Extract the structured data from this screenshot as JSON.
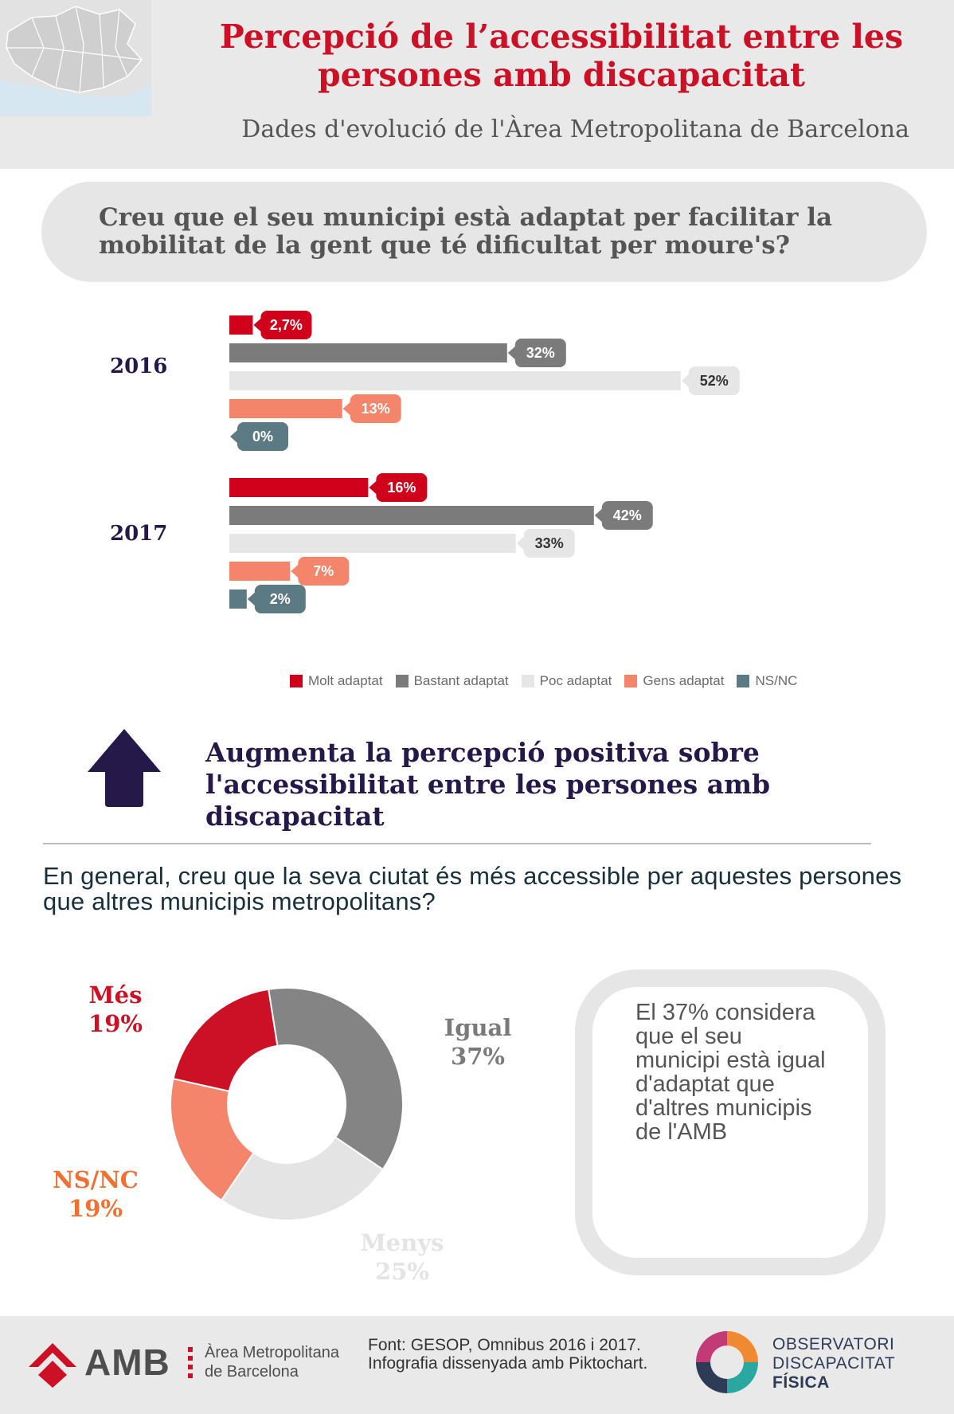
{
  "header": {
    "title": "Percepció de l’accessibilitat entre les persones amb discapacitat",
    "subtitle": "Dades d'evolució de l'Àrea Metropolitana de Barcelona"
  },
  "question1": "Creu que el seu municipi està adaptat per facilitar la mobilitat de la gent que té dificultat per moure's?",
  "headline": "Augmenta la percepció positiva sobre l'accessibilitat entre les persones amb discapacitat",
  "question2": "En general, creu que la seva ciutat és més accessible per aquestes persones que altres municipis metropolitans?",
  "callout": "El 37% considera que el seu municipi està igual d'adaptat que d'altres municipis de l'AMB",
  "colors": {
    "molt": "#d0021b",
    "bastant": "#7b7b7b",
    "poc": "#e6e6e6",
    "gens": "#f5856a",
    "nsnc": "#5c7a83",
    "navy": "#25194a"
  },
  "chart_data": [
    {
      "type": "bar",
      "orientation": "horizontal",
      "categories": [
        "2016",
        "2017"
      ],
      "series": [
        {
          "name": "Molt adaptat",
          "values": [
            2.7,
            16
          ],
          "labels": [
            "2,7%",
            "16%"
          ],
          "color": "#d0021b"
        },
        {
          "name": "Bastant adaptat",
          "values": [
            32,
            42
          ],
          "labels": [
            "32%",
            "42%"
          ],
          "color": "#7b7b7b"
        },
        {
          "name": "Poc adaptat",
          "values": [
            52,
            33
          ],
          "labels": [
            "52%",
            "33%"
          ],
          "color": "#e6e6e6"
        },
        {
          "name": "Gens adaptat",
          "values": [
            13,
            7
          ],
          "labels": [
            "13%",
            "7%"
          ],
          "color": "#f5856a"
        },
        {
          "name": "NS/NC",
          "values": [
            0,
            2
          ],
          "labels": [
            "0%",
            "2%"
          ],
          "color": "#5c7a83"
        }
      ],
      "legend": "bottom"
    },
    {
      "type": "pie",
      "donut": true,
      "slices": [
        {
          "name": "Més",
          "value": 19,
          "label": "19%",
          "color": "#cc1126"
        },
        {
          "name": "Igual",
          "value": 37,
          "label": "37%",
          "color": "#848484"
        },
        {
          "name": "Menys",
          "value": 25,
          "label": "25%",
          "color": "#e4e4e4"
        },
        {
          "name": "NS/NC",
          "value": 19,
          "label": "19%",
          "color": "#f5856a"
        }
      ]
    }
  ],
  "footer": {
    "amb": "AMB",
    "amb_name_line1": "Àrea Metropolitana",
    "amb_name_line2": "de Barcelona",
    "source": "Font: GESOP, Omnibus 2016 i 2017. Infografia dissenyada amb Piktochart.",
    "odf_line1": "OBSERVATORI",
    "odf_line2": "DISCAPACITAT",
    "odf_line3": "FÍSICA"
  }
}
